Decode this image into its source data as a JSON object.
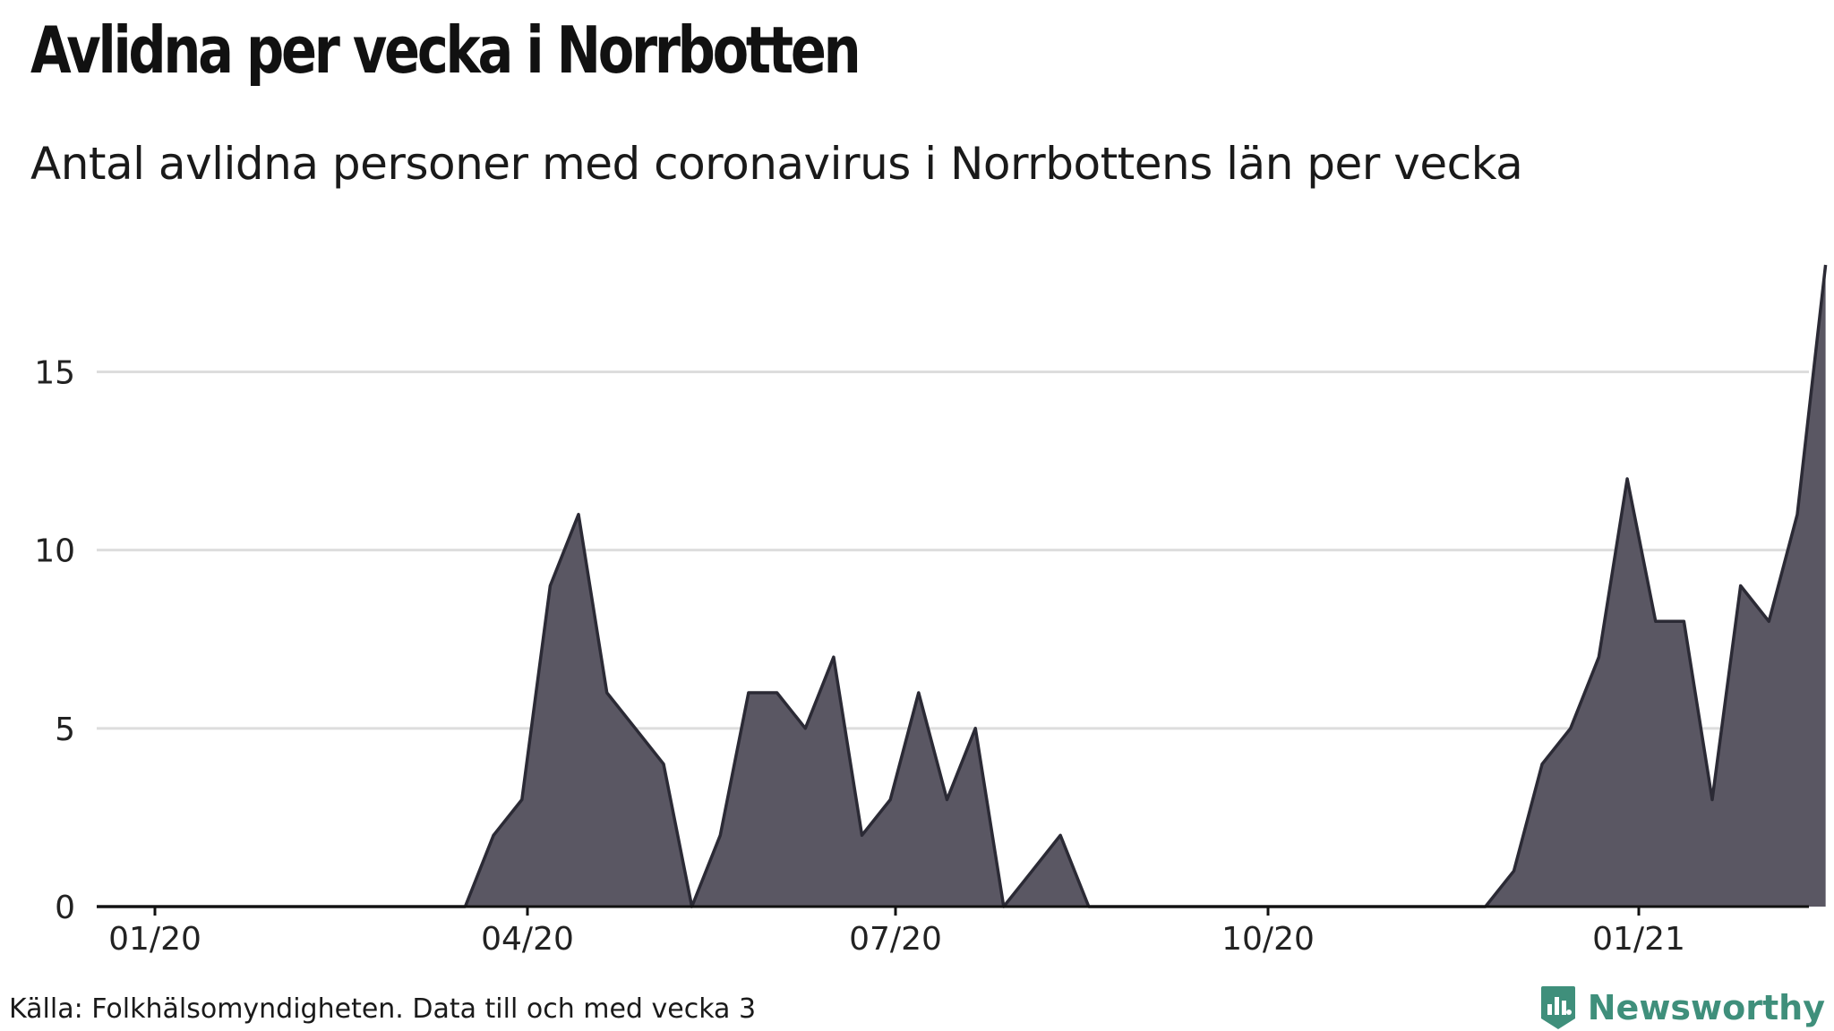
{
  "title": "Avlidna per vecka i Norrbotten",
  "subtitle": "Antal avlidna personer med coronavirus i Norrbottens län per vecka",
  "source": "Källa: Folkhälsomyndigheten. Data till och med vecka 3",
  "brand": {
    "name": "Newsworthy",
    "color": "#3f8f7b",
    "icon": "bar-chart-badge-icon"
  },
  "colors": {
    "area_fill": "#5a5763",
    "line": "#2b2a35",
    "grid": "#dddddd",
    "axis": "#111111",
    "text": "#222222"
  },
  "chart_data": {
    "type": "area",
    "title": "Avlidna per vecka i Norrbotten",
    "subtitle": "Antal avlidna personer med coronavirus i Norrbottens län per vecka",
    "xlabel": "",
    "ylabel": "",
    "x_ticks": [
      "01/20",
      "04/20",
      "07/20",
      "10/20",
      "01/21"
    ],
    "y_ticks": [
      0,
      5,
      10,
      15
    ],
    "ylim": [
      0,
      18
    ],
    "grid": "horizontal",
    "series": [
      {
        "values": [
          0,
          0,
          0,
          0,
          0,
          0,
          0,
          0,
          0,
          0,
          0,
          0,
          0,
          0,
          2,
          3,
          9,
          11,
          6,
          5,
          4,
          0,
          2,
          6,
          6,
          5,
          7,
          2,
          3,
          6,
          3,
          5,
          0,
          1,
          2,
          0,
          0,
          0,
          0,
          0,
          0,
          0,
          0,
          0,
          0,
          0,
          0,
          0,
          0,
          0,
          1,
          4,
          5,
          7,
          12,
          8,
          8,
          3,
          9,
          8,
          11,
          18
        ]
      }
    ]
  }
}
